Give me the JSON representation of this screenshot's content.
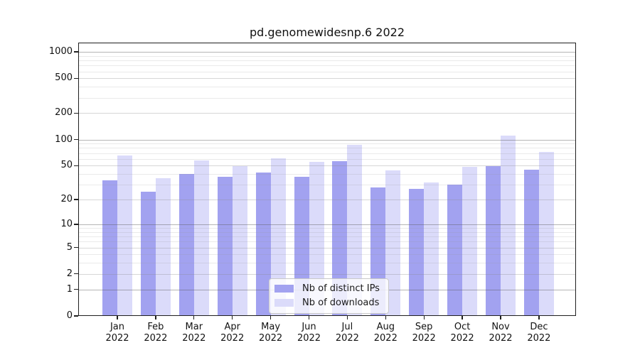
{
  "title": "pd.genomewidesnp.6 2022",
  "legend": {
    "items": [
      {
        "label": "Nb of distinct IPs",
        "color": "#a2a2f0"
      },
      {
        "label": "Nb of downloads",
        "color": "#dbdbfa"
      }
    ]
  },
  "colors": {
    "bar_distinct_ips": "#a2a2f0",
    "bar_downloads": "#dbdbfa",
    "axis": "#1f1f1f"
  },
  "chart_data": {
    "type": "bar",
    "title": "pd.genomewidesnp.6 2022",
    "categories": [
      "Jan 2022",
      "Feb 2022",
      "Mar 2022",
      "Apr 2022",
      "May 2022",
      "Jun 2022",
      "Jul 2022",
      "Aug 2022",
      "Sep 2022",
      "Oct 2022",
      "Nov 2022",
      "Dec 2022"
    ],
    "series": [
      {
        "name": "Nb of distinct IPs",
        "color": "#a2a2f0",
        "values": [
          34,
          25,
          40,
          37,
          42,
          37,
          56,
          28,
          27,
          30,
          49,
          45
        ]
      },
      {
        "name": "Nb of downloads",
        "color": "#dbdbfa",
        "values": [
          66,
          36,
          57,
          49,
          61,
          55,
          87,
          44,
          32,
          48,
          110,
          72
        ]
      }
    ],
    "xlabel": "",
    "ylabel": "",
    "yscale": "log1p",
    "yticks": [
      0,
      1,
      2,
      5,
      10,
      20,
      50,
      100,
      200,
      500,
      1000
    ],
    "minor_gridlines": [
      3,
      4,
      6,
      7,
      8,
      9,
      30,
      40,
      60,
      70,
      80,
      90,
      300,
      400,
      600,
      700,
      800,
      900
    ],
    "ylim": [
      0,
      1273
    ],
    "grid": "on",
    "legend_position": "lower center"
  }
}
